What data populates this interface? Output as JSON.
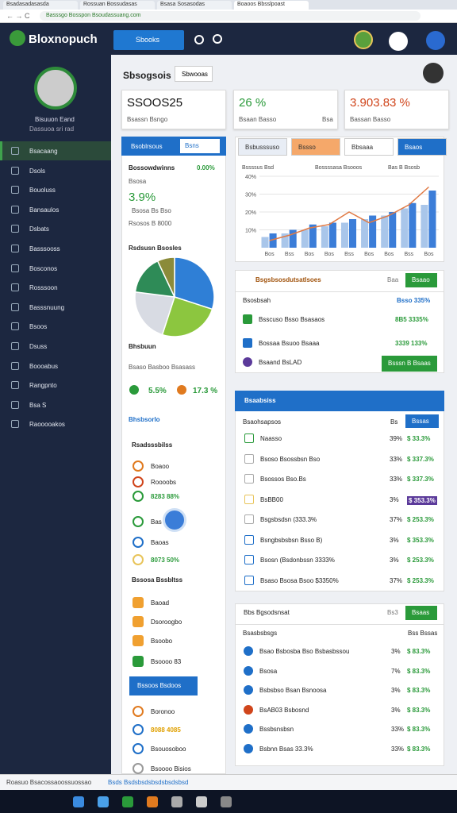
{
  "browser": {
    "tabs": [
      "Bsadasadasasda",
      "Rossuan Bossudasas",
      "Bsasa Sosasodas",
      "Boaoos Bbsslpoast"
    ],
    "url": "Basssgo Bosspon Bsoudassuang.com"
  },
  "header": {
    "logo": "Bloxnopuch",
    "button": "Sbooks"
  },
  "sidebar": {
    "user_name": "Bisuuon Eand",
    "user_role": "Dassuoa sri rad",
    "menu": [
      "Bsacaang",
      "Dsols",
      "Bouoluss",
      "Bansaulos",
      "Dsbats",
      "Basssooss",
      "Bosconos",
      "Rosssoon",
      "Basssnuung",
      "Bsoos",
      "Dsuss",
      "Boooabus",
      "Rangpnto",
      "Bsa S",
      "Raooooakos"
    ]
  },
  "page": {
    "title": "Sbsogsois",
    "button": "Sbwooas"
  },
  "kpis": [
    {
      "value": "SSOOS25",
      "label": "Bsassn Bsngo"
    },
    {
      "value": "26 %",
      "label": "Bsaan Basso",
      "note": "Bsa"
    },
    {
      "value": "3.903.83 %",
      "label": "Bassan Basso"
    }
  ],
  "left_panel": {
    "tabs": [
      "Bsoblrsous",
      "Bsns"
    ],
    "heading": "Bossowdwinns",
    "heading_value": "0.00%",
    "sub": "Bsosa",
    "big_value": "3.9%",
    "line1": "Bsosa Bs Bso",
    "line2": "Rsosos B 8000",
    "pie_title": "Rsdsusn Bsosles",
    "pie_caption": "Bhsbuun",
    "caption2": "Bsaso Basboo Bsasass",
    "stats": [
      "5.5%",
      "17.3 %"
    ],
    "section1": "Bhsbsorlo",
    "section2": "Rsadsssbilss",
    "items2": [
      "Boaoo",
      "Roooobs",
      "8283 88%",
      "Bas",
      "Baoas",
      "8073 50%"
    ],
    "section3": "Bssosa Bssbltss",
    "items3": [
      "Baoad",
      "Dsoroogbo",
      "Bsoobo",
      "Bsoooo 83"
    ],
    "button": "Bssoos Bsdoos",
    "items4": [
      "Boronoo",
      "8088 4085",
      "Bsouosoboo",
      "Bsoooo Bisios"
    ]
  },
  "chart_card": {
    "tabs": [
      "Bsbusssuso",
      "Bssso",
      "Bbsaaa",
      "Bsaos"
    ]
  },
  "list_card": {
    "title": "Bsgsbsosdutsatlsoes",
    "badge": "Baa",
    "button": "Bsaao",
    "header": [
      "Bsosbsah",
      "Bsso 335%"
    ],
    "rows": [
      [
        "Bsscuso Bsso Bsasaos",
        "8B5 3335%"
      ],
      [
        "Bossaa Bsuoo Bsaaa",
        "3339 133%"
      ],
      [
        "Bsaand BsLAD",
        "Bsssn B Bsaas"
      ]
    ]
  },
  "table1": {
    "title": "Bsaabsiss",
    "header": [
      "Bsaohsapsos",
      "Bs",
      "Bssas"
    ],
    "rows": [
      [
        "Naasso",
        "39%",
        "$ 33.3%"
      ],
      [
        "Bsoso Bsossbsn Bso",
        "33%",
        "$ 337.3%"
      ],
      [
        "Bsossos Bso.Bs",
        "33%",
        "$ 337.3%"
      ],
      [
        "BsBB00",
        "3%",
        "$ 353.3%"
      ],
      [
        "Bsgsbsdsn (333.3%",
        "37%",
        "$ 253.3%"
      ],
      [
        "Bsngbsbsbsn Bsso B)",
        "3%",
        "$ 353.3%"
      ],
      [
        "Bsosn (Bsdonbssn 3333%",
        "3%",
        "$ 253.3%"
      ],
      [
        "Bsaso Bsosa Bsoo $3350%",
        "37%",
        "$ 253.3%"
      ]
    ]
  },
  "table2": {
    "title": "Bbs Bgsodsnsat",
    "badge": "Bs3",
    "button": "Bsaas",
    "header": [
      "Bsasbsbsgs",
      "Bss Bssas"
    ],
    "rows": [
      [
        "Bsao Bsbosba Bso Bsbasbssou",
        "3%",
        "$ 83.3%"
      ],
      [
        "Bsosa",
        "7%",
        "$ 83.3%"
      ],
      [
        "Bsbsbso Bsan Bsnoosa",
        "3%",
        "$ 83.3%"
      ],
      [
        "BsAB03 Bsbosnd",
        "3%",
        "$ 83.3%"
      ],
      [
        "Bssbsnsbsn",
        "33%",
        "$ 83.3%"
      ],
      [
        "Bsbnn Bsas 33.3%",
        "33%",
        "$ 83.3%"
      ]
    ]
  },
  "status": {
    "text": "Roasuo Bsacossaoossuossao",
    "link": "Bsds Bsdsbsdsbsdsbsdsbsd"
  },
  "chart_data": [
    {
      "type": "pie",
      "values": [
        30,
        25,
        22,
        16,
        7
      ],
      "colors": [
        "#2f7fd6",
        "#8cc63f",
        "#d8dbe3",
        "#2e8b57",
        "#8b8b3a"
      ]
    },
    {
      "type": "bar",
      "categories": [
        "Bos",
        "Bss",
        "Bos",
        "Bos",
        "Bss",
        "Bos",
        "Bos",
        "Bss",
        "Bos"
      ],
      "ylim": [
        0,
        40
      ],
      "yticks": [
        {
          "value": 10,
          "label": "10%"
        },
        {
          "value": 20,
          "label": "20%"
        },
        {
          "value": 30,
          "label": "30%"
        },
        {
          "value": 40,
          "label": "40%"
        }
      ],
      "grid": true,
      "series": [
        {
          "name": "Bssssus Bsd",
          "type": "bar",
          "color": "#a9c6ea",
          "values": [
            6,
            8,
            10,
            12,
            14,
            16,
            18,
            22,
            24
          ]
        },
        {
          "name": "Bossssasa Bsooos",
          "type": "bar",
          "color": "#3b7dd8",
          "values": [
            8,
            10,
            13,
            14,
            16,
            18,
            20,
            25,
            32
          ]
        },
        {
          "name": "Bas B Bsosb",
          "type": "line",
          "color": "#e07a45",
          "values": [
            4,
            7,
            11,
            13,
            20,
            14,
            18,
            24,
            34
          ]
        }
      ]
    }
  ]
}
